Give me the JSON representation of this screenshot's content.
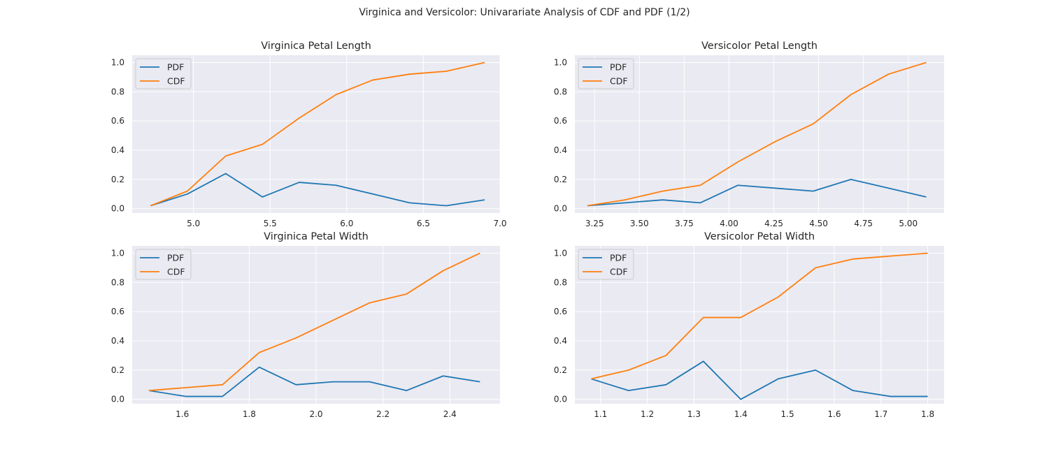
{
  "suptitle": "Virginica and Versicolor: Univarariate Analysis of CDF and PDF (1/2)",
  "colors": {
    "pdf": "#1f77b4",
    "cdf": "#ff7f0e",
    "axes_bg": "#eaeaf2",
    "grid": "#ffffff"
  },
  "chart_data": [
    {
      "type": "line",
      "title": "Virginica Petal Length",
      "xlabel": "",
      "ylabel": "",
      "xlim": [
        4.6,
        7.0
      ],
      "ylim": [
        -0.03,
        1.05
      ],
      "xticks": [
        5.0,
        5.5,
        6.0,
        6.5,
        7.0
      ],
      "xtick_labels": [
        "5.0",
        "5.5",
        "6.0",
        "6.5",
        "7.0"
      ],
      "yticks": [
        0.0,
        0.2,
        0.4,
        0.6,
        0.8,
        1.0
      ],
      "ytick_labels": [
        "0.0",
        "0.2",
        "0.4",
        "0.6",
        "0.8",
        "1.0"
      ],
      "grid": true,
      "legend_position": "top-left",
      "x": [
        4.72,
        4.96,
        5.21,
        5.45,
        5.69,
        5.93,
        6.17,
        6.41,
        6.65,
        6.9
      ],
      "series": [
        {
          "name": "PDF",
          "color": "#1f77b4",
          "values": [
            0.02,
            0.1,
            0.24,
            0.08,
            0.18,
            0.16,
            0.1,
            0.04,
            0.02,
            0.06
          ]
        },
        {
          "name": "CDF",
          "color": "#ff7f0e",
          "values": [
            0.02,
            0.12,
            0.36,
            0.44,
            0.62,
            0.78,
            0.88,
            0.92,
            0.94,
            1.0
          ]
        }
      ]
    },
    {
      "type": "line",
      "title": "Versicolor Petal Length",
      "xlabel": "",
      "ylabel": "",
      "xlim": [
        3.14,
        5.2
      ],
      "ylim": [
        -0.03,
        1.05
      ],
      "xticks": [
        3.25,
        3.5,
        3.75,
        4.0,
        4.25,
        4.5,
        4.75,
        5.0
      ],
      "xtick_labels": [
        "3.25",
        "3.50",
        "3.75",
        "4.00",
        "4.25",
        "4.50",
        "4.75",
        "5.00"
      ],
      "yticks": [
        0.0,
        0.2,
        0.4,
        0.6,
        0.8,
        1.0
      ],
      "ytick_labels": [
        "0.0",
        "0.2",
        "0.4",
        "0.6",
        "0.8",
        "1.0"
      ],
      "grid": true,
      "legend_position": "top-left",
      "x": [
        3.21,
        3.42,
        3.63,
        3.84,
        4.05,
        4.26,
        4.47,
        4.68,
        4.89,
        5.1
      ],
      "series": [
        {
          "name": "PDF",
          "color": "#1f77b4",
          "values": [
            0.02,
            0.04,
            0.06,
            0.04,
            0.16,
            0.14,
            0.12,
            0.2,
            0.14,
            0.08
          ]
        },
        {
          "name": "CDF",
          "color": "#ff7f0e",
          "values": [
            0.02,
            0.06,
            0.12,
            0.16,
            0.32,
            0.46,
            0.58,
            0.78,
            0.92,
            1.0
          ]
        }
      ]
    },
    {
      "type": "line",
      "title": "Virginica Petal Width",
      "xlabel": "",
      "ylabel": "",
      "xlim": [
        1.45,
        2.55
      ],
      "ylim": [
        -0.03,
        1.05
      ],
      "xticks": [
        1.6,
        1.8,
        2.0,
        2.2,
        2.4
      ],
      "xtick_labels": [
        "1.6",
        "1.8",
        "2.0",
        "2.2",
        "2.4"
      ],
      "yticks": [
        0.0,
        0.2,
        0.4,
        0.6,
        0.8,
        1.0
      ],
      "ytick_labels": [
        "0.0",
        "0.2",
        "0.4",
        "0.6",
        "0.8",
        "1.0"
      ],
      "grid": true,
      "legend_position": "top-left",
      "x": [
        1.5,
        1.61,
        1.72,
        1.83,
        1.94,
        2.05,
        2.16,
        2.27,
        2.38,
        2.49
      ],
      "series": [
        {
          "name": "PDF",
          "color": "#1f77b4",
          "values": [
            0.06,
            0.02,
            0.02,
            0.22,
            0.1,
            0.12,
            0.12,
            0.06,
            0.16,
            0.12
          ]
        },
        {
          "name": "CDF",
          "color": "#ff7f0e",
          "values": [
            0.06,
            0.08,
            0.1,
            0.32,
            0.42,
            0.54,
            0.66,
            0.72,
            0.88,
            1.0
          ]
        }
      ]
    },
    {
      "type": "line",
      "title": "Versicolor Petal Width",
      "xlabel": "",
      "ylabel": "",
      "xlim": [
        1.045,
        1.835
      ],
      "ylim": [
        -0.03,
        1.05
      ],
      "xticks": [
        1.1,
        1.2,
        1.3,
        1.4,
        1.5,
        1.6,
        1.7,
        1.8
      ],
      "xtick_labels": [
        "1.1",
        "1.2",
        "1.3",
        "1.4",
        "1.5",
        "1.6",
        "1.7",
        "1.8"
      ],
      "yticks": [
        0.0,
        0.2,
        0.4,
        0.6,
        0.8,
        1.0
      ],
      "ytick_labels": [
        "0.0",
        "0.2",
        "0.4",
        "0.6",
        "0.8",
        "1.0"
      ],
      "grid": true,
      "legend_position": "top-left",
      "x": [
        1.08,
        1.16,
        1.24,
        1.32,
        1.4,
        1.48,
        1.56,
        1.64,
        1.72,
        1.8
      ],
      "series": [
        {
          "name": "PDF",
          "color": "#1f77b4",
          "values": [
            0.14,
            0.06,
            0.1,
            0.26,
            0.0,
            0.14,
            0.2,
            0.06,
            0.02,
            0.02
          ]
        },
        {
          "name": "CDF",
          "color": "#ff7f0e",
          "values": [
            0.14,
            0.2,
            0.3,
            0.56,
            0.56,
            0.7,
            0.9,
            0.96,
            0.98,
            1.0
          ]
        }
      ]
    }
  ]
}
